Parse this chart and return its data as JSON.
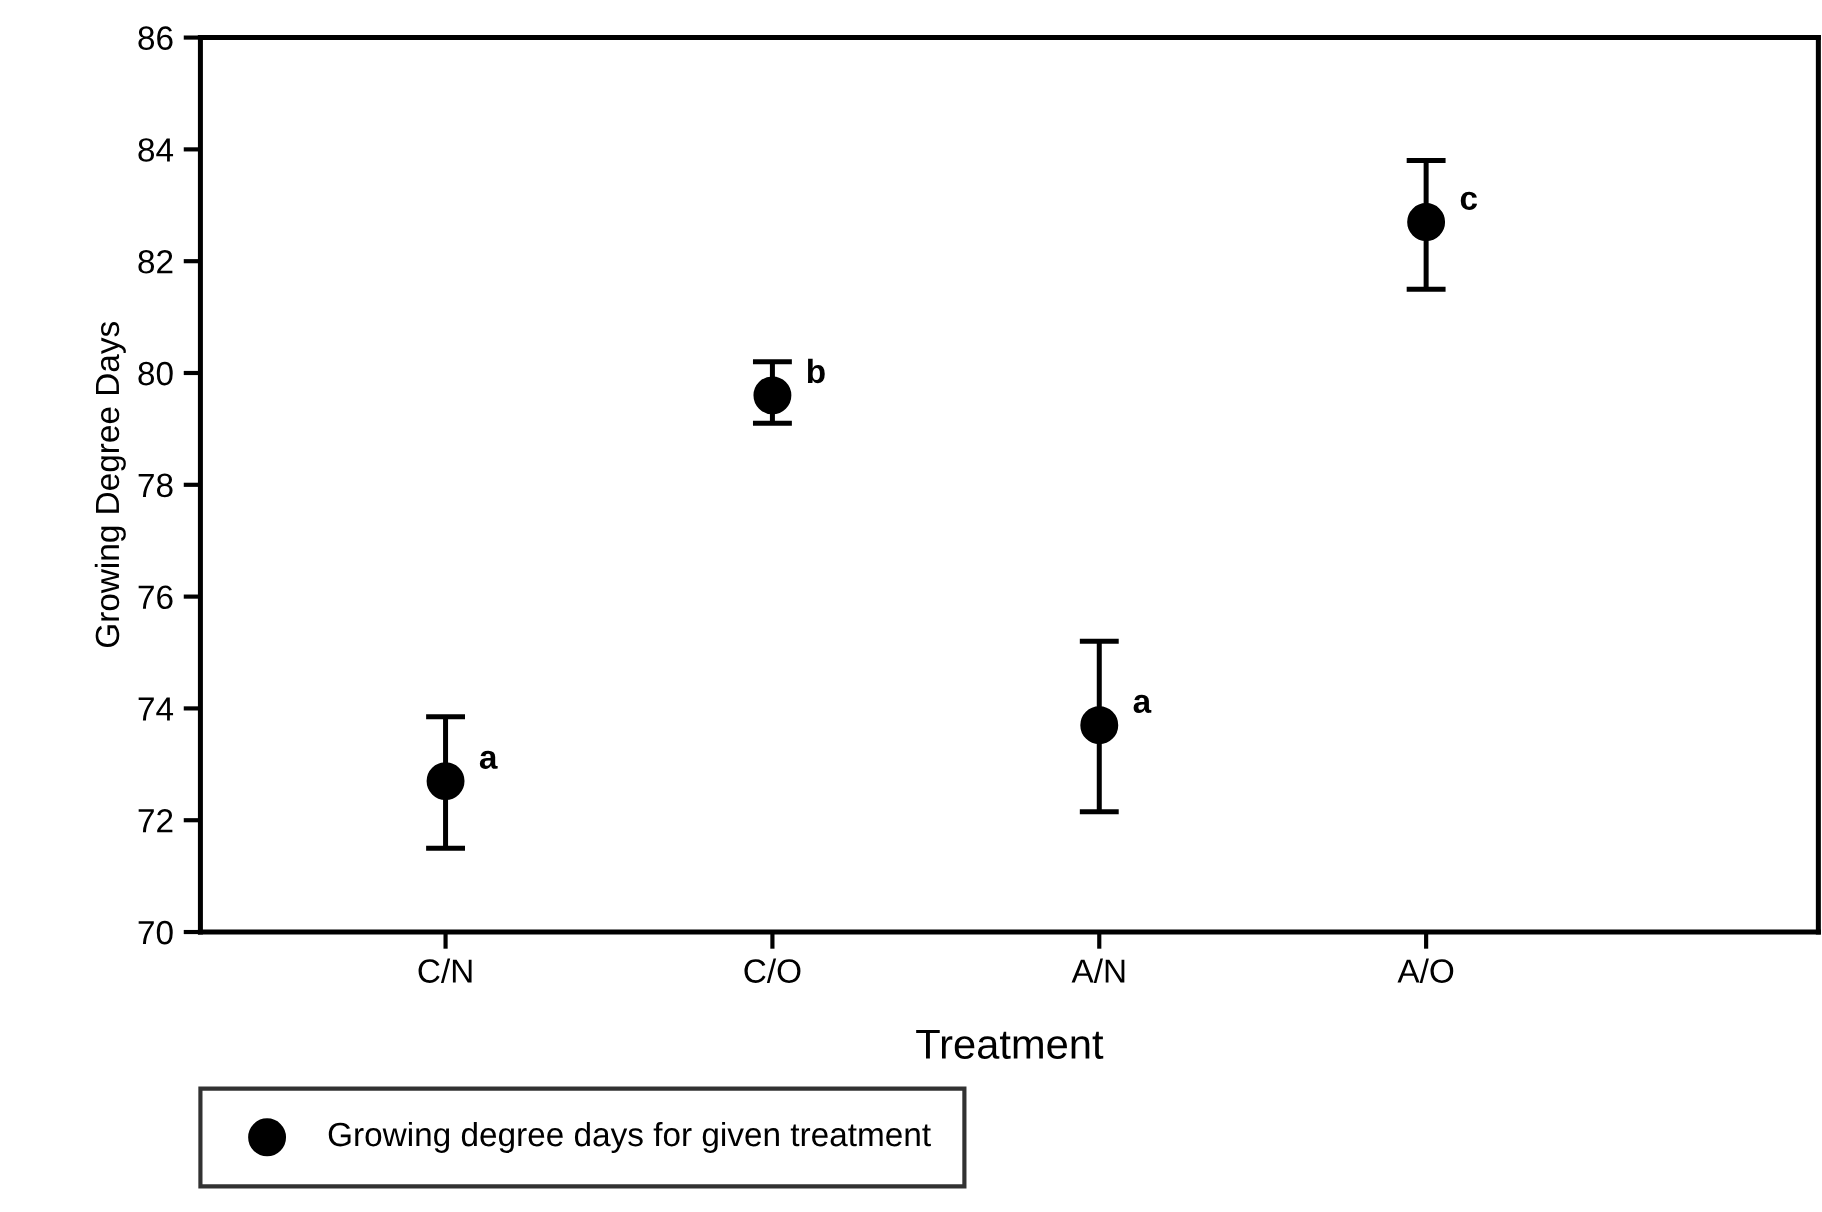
{
  "chart_data": {
    "type": "scatter",
    "xlabel": "Treatment",
    "ylabel": "Growing Degree Days",
    "categories": [
      "C/N",
      "C/O",
      "A/N",
      "A/O"
    ],
    "series": [
      {
        "name": "Growing degree days for given treatment",
        "color": "#000000",
        "values": [
          72.7,
          79.6,
          73.7,
          82.7
        ],
        "errors": [
          [
            71.5,
            73.85
          ],
          [
            79.1,
            80.2
          ],
          [
            72.15,
            75.2
          ],
          [
            81.5,
            83.8
          ]
        ]
      }
    ],
    "ylim": [
      70,
      86
    ],
    "yticks": [
      70,
      72,
      74,
      76,
      78,
      80,
      82,
      84,
      86
    ],
    "annotations": [
      {
        "text": "a",
        "x": "C/N",
        "y": 72.7
      },
      {
        "text": "b",
        "x": "C/O",
        "y": 79.6
      },
      {
        "text": "a",
        "x": "A/N",
        "y": 73.7
      },
      {
        "text": "c",
        "x": "A/O",
        "y": 82.7
      }
    ],
    "marker": "circle",
    "grid": false,
    "legend": "bottom"
  }
}
